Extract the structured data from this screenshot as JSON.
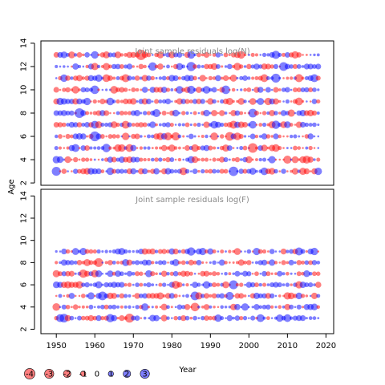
{
  "chart_data": {
    "type": "scatter",
    "kind": "bubble residual plot",
    "xlabel": "Year",
    "ylabel": "Age",
    "x_ticks": [
      1950,
      1960,
      1970,
      1980,
      1990,
      2000,
      2010,
      2020
    ],
    "legend": {
      "values": [
        -4,
        -3,
        -2,
        -1,
        0,
        1,
        2,
        3
      ],
      "labels": [
        "-4",
        "-3",
        "-2",
        "-1",
        "0",
        "1",
        "2",
        "3"
      ],
      "placement": "bottom-left"
    },
    "colors": {
      "positive": "#0000ff",
      "negative": "#ff0000",
      "alpha": 0.5
    },
    "panels": [
      {
        "title": "Joint sample residuals log(N)",
        "xlim": [
          1946,
          2022
        ],
        "ylim": [
          1.8,
          14.2
        ],
        "y_ticks": [
          2,
          4,
          6,
          8,
          10,
          12,
          14
        ],
        "years": [
          1950,
          2018
        ],
        "ages": [
          3,
          13
        ],
        "seed": 7
      },
      {
        "title": "Joint sample residuals log(F)",
        "xlim": [
          1946,
          2022
        ],
        "ylim": [
          1.6,
          14.6
        ],
        "y_ticks": [
          2,
          4,
          6,
          8,
          10,
          12,
          14
        ],
        "years": [
          1950,
          2018
        ],
        "ages": [
          3,
          9
        ],
        "seed": 13
      }
    ]
  }
}
